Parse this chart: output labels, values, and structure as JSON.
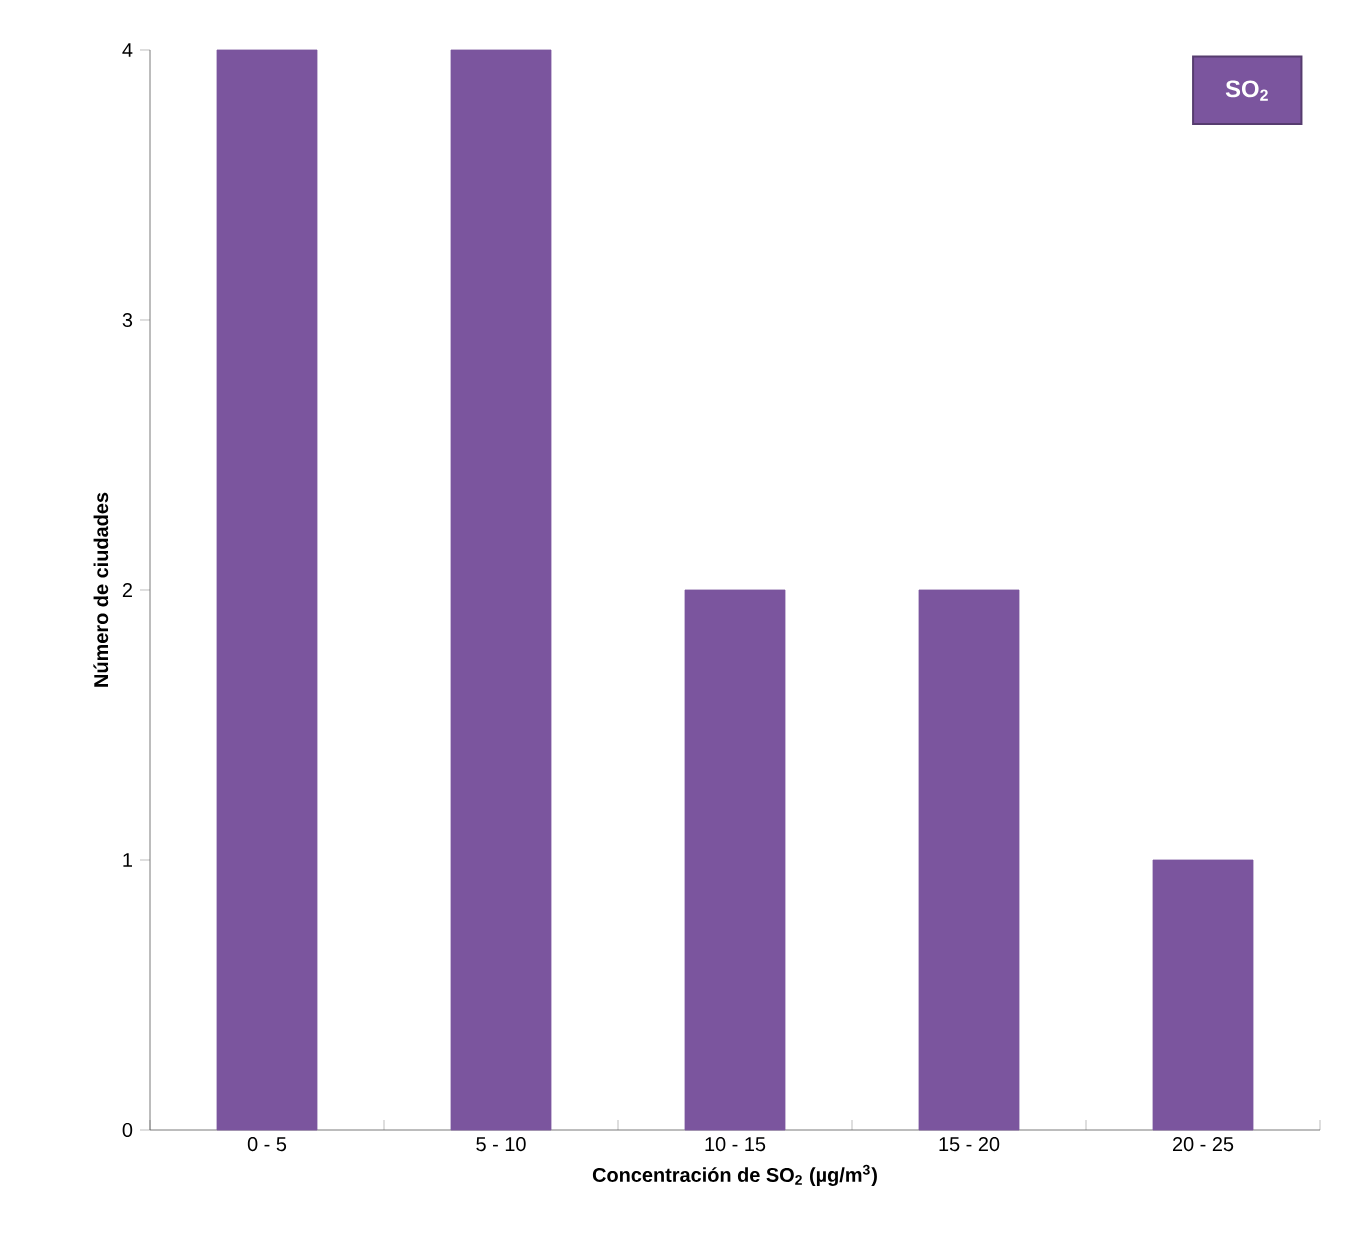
{
  "chart_data": {
    "type": "bar",
    "xlabel": "Concentración  de SO$_{2}$ (µg/m$^{3}$)",
    "ylabel": "Número de ciudades",
    "categories": [
      "0 - 5",
      "5 - 10",
      "10 - 15",
      "15 - 20",
      "20 - 25"
    ],
    "series": [
      {
        "name": "SO$_{2}$",
        "color": "#7b559e",
        "values": [
          4,
          4,
          2,
          2,
          1
        ]
      }
    ],
    "ylim": [
      0,
      4
    ],
    "yticks": [
      0,
      1,
      2,
      3,
      4
    ],
    "legend": "top right"
  }
}
